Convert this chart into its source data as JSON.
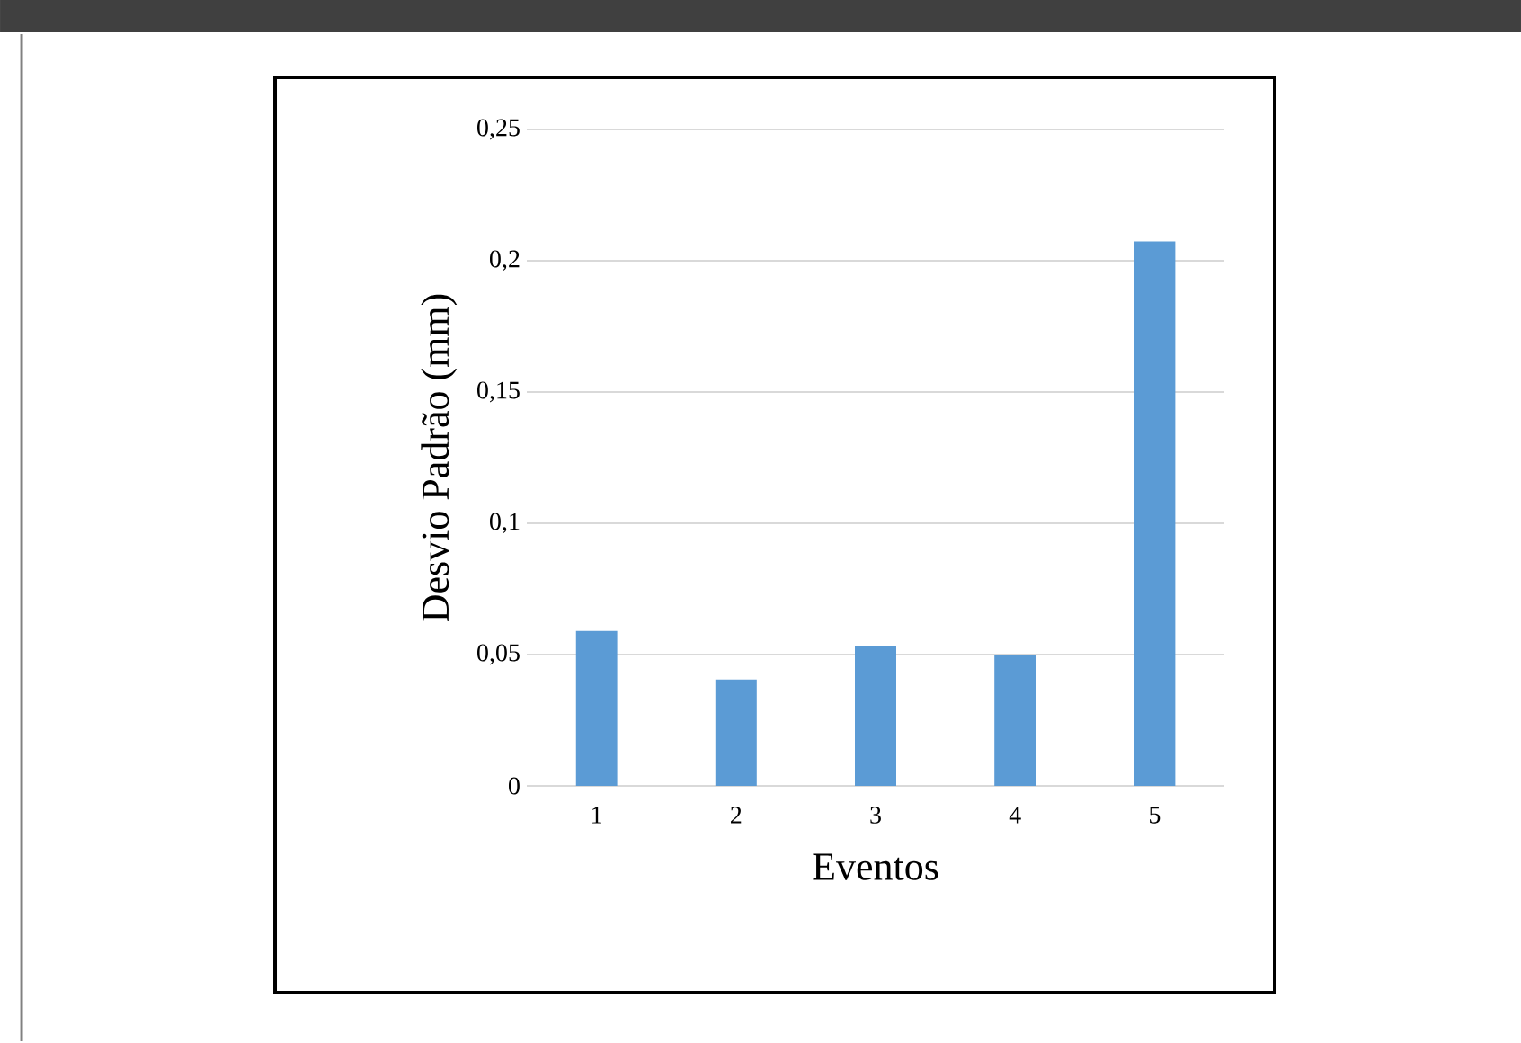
{
  "chart_data": {
    "type": "bar",
    "xlabel": "Eventos",
    "ylabel": "Desvio Padrão (mm)",
    "categories": [
      "1",
      "2",
      "3",
      "4",
      "5"
    ],
    "values": [
      0.059,
      0.0405,
      0.0533,
      0.05,
      0.2074
    ],
    "color": "#5b9bd5",
    "ylim": [
      0,
      0.25
    ],
    "yticks": [
      {
        "value": 0,
        "label": "0"
      },
      {
        "value": 0.05,
        "label": "0,05"
      },
      {
        "value": 0.1,
        "label": "0,1"
      },
      {
        "value": 0.15,
        "label": "0,15"
      },
      {
        "value": 0.2,
        "label": "0,2"
      },
      {
        "value": 0.25,
        "label": "0,25"
      }
    ],
    "grid": "y"
  }
}
